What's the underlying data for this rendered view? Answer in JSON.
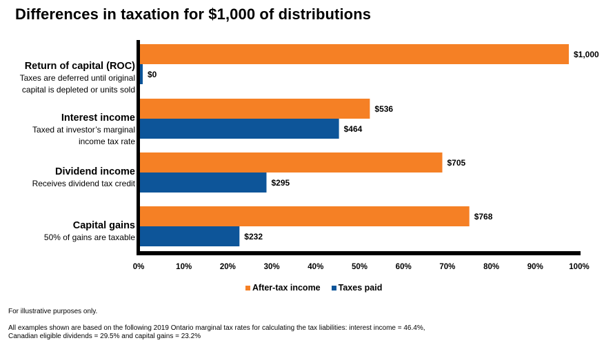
{
  "colors": {
    "after_tax": "#F58025",
    "taxes": "#0D5599",
    "axis": "#000000"
  },
  "chart_data": {
    "type": "bar",
    "orientation": "horizontal",
    "title": "Differences in taxation for $1,000 of distributions",
    "categories": [
      {
        "name": "Return of capital (ROC)",
        "description": [
          "Taxes are deferred  until original",
          "capital is depleted  or units sold"
        ]
      },
      {
        "name": "Interest income",
        "description": [
          "Taxed at investor’s  marginal",
          "income tax rate"
        ]
      },
      {
        "name": "Dividend income",
        "description": [
          "Receives  dividend  tax credit"
        ]
      },
      {
        "name": "Capital gains",
        "description": [
          "50% of gains are taxable"
        ]
      }
    ],
    "series": [
      {
        "name": "After-tax income",
        "values": [
          1000,
          536,
          705,
          768
        ],
        "labels": [
          "$1,000",
          "$536",
          "$705",
          "$768"
        ]
      },
      {
        "name": "Taxes paid",
        "values": [
          0,
          464,
          295,
          232
        ],
        "labels": [
          "$0",
          "$464",
          "$295",
          "$232"
        ]
      }
    ],
    "xlabel": "",
    "ylabel": "",
    "x_ticks": [
      "0%",
      "10%",
      "20%",
      "30%",
      "40%",
      "50%",
      "60%",
      "70%",
      "80%",
      "90%",
      "100%"
    ],
    "xlim": [
      0,
      100
    ],
    "grid": false,
    "legend_position": "bottom-center"
  },
  "footnotes": {
    "illustrative": "For illustrative purposes only.",
    "line1": "All examples shown are based on the following 2019 Ontario marginal tax rates for calculating the tax liabilities:  interest income = 46.4%,",
    "line2": "Canadian  eligible  dividends = 29.5% and capital gains = 23.2%"
  }
}
